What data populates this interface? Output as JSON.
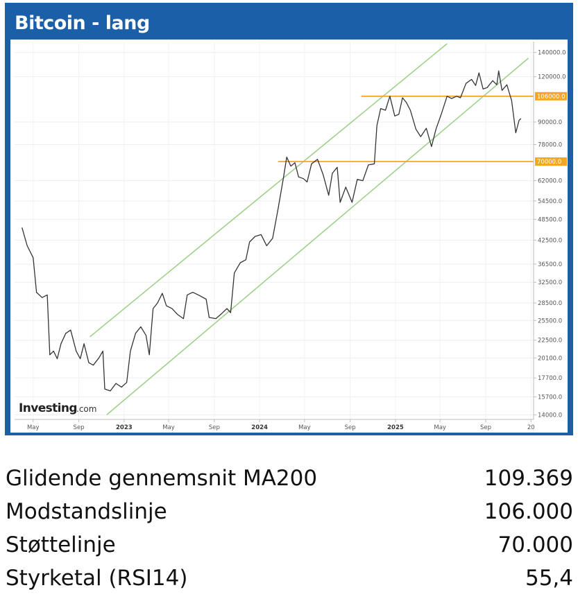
{
  "header": {
    "title": "Bitcoin - lang"
  },
  "logo": {
    "brand": "Investing",
    "suffix": ".com"
  },
  "chart_data": {
    "type": "line",
    "y_scale": "log",
    "ylim": [
      14000,
      150000
    ],
    "y_ticks": [
      "140000.0",
      "120000.0",
      "90000.0",
      "78000.0",
      "62000.0",
      "54500.0",
      "48500.0",
      "42500.0",
      "36500.0",
      "32500.0",
      "28500.0",
      "25500.0",
      "22500.0",
      "20100.0",
      "17700.0",
      "15700.0",
      "14000.0"
    ],
    "y_tick_values": [
      140000,
      120000,
      90000,
      78000,
      62000,
      54500,
      48500,
      42500,
      36500,
      32500,
      28500,
      25500,
      22500,
      20100,
      17700,
      15700,
      14000
    ],
    "x_ticks": [
      {
        "label": "May",
        "date": "2022-05-01"
      },
      {
        "label": "Sep",
        "date": "2022-09-01"
      },
      {
        "label": "2023",
        "date": "2023-01-01",
        "bold": true
      },
      {
        "label": "May",
        "date": "2023-05-01"
      },
      {
        "label": "Sep",
        "date": "2023-09-01"
      },
      {
        "label": "2024",
        "date": "2024-01-01",
        "bold": true
      },
      {
        "label": "May",
        "date": "2024-05-01"
      },
      {
        "label": "Sep",
        "date": "2024-09-01"
      },
      {
        "label": "2025",
        "date": "2025-01-01",
        "bold": true
      },
      {
        "label": "May",
        "date": "2025-05-01"
      },
      {
        "label": "Sep",
        "date": "2025-09-01"
      },
      {
        "label": "20",
        "date": "2026-01-01"
      }
    ],
    "series": [
      {
        "color": "#333333",
        "points": [
          [
            "2022-04-01",
            46000
          ],
          [
            "2022-04-15",
            41000
          ],
          [
            "2022-05-01",
            38000
          ],
          [
            "2022-05-10",
            30500
          ],
          [
            "2022-05-25",
            29500
          ],
          [
            "2022-06-08",
            30000
          ],
          [
            "2022-06-15",
            20500
          ],
          [
            "2022-06-25",
            21000
          ],
          [
            "2022-07-05",
            20000
          ],
          [
            "2022-07-15",
            22000
          ],
          [
            "2022-07-28",
            23500
          ],
          [
            "2022-08-10",
            24000
          ],
          [
            "2022-08-25",
            21000
          ],
          [
            "2022-09-05",
            20000
          ],
          [
            "2022-09-15",
            22000
          ],
          [
            "2022-09-28",
            19500
          ],
          [
            "2022-10-10",
            19200
          ],
          [
            "2022-10-25",
            20100
          ],
          [
            "2022-11-05",
            21000
          ],
          [
            "2022-11-10",
            16500
          ],
          [
            "2022-11-25",
            16300
          ],
          [
            "2022-12-10",
            17100
          ],
          [
            "2022-12-25",
            16700
          ],
          [
            "2023-01-08",
            17200
          ],
          [
            "2023-01-18",
            21000
          ],
          [
            "2023-02-01",
            23500
          ],
          [
            "2023-02-15",
            24500
          ],
          [
            "2023-03-01",
            23200
          ],
          [
            "2023-03-10",
            20500
          ],
          [
            "2023-03-20",
            27500
          ],
          [
            "2023-04-01",
            28500
          ],
          [
            "2023-04-14",
            30300
          ],
          [
            "2023-04-25",
            28000
          ],
          [
            "2023-05-10",
            27500
          ],
          [
            "2023-05-25",
            26500
          ],
          [
            "2023-06-10",
            25800
          ],
          [
            "2023-06-20",
            30000
          ],
          [
            "2023-07-05",
            30500
          ],
          [
            "2023-07-20",
            30000
          ],
          [
            "2023-08-10",
            29200
          ],
          [
            "2023-08-18",
            26000
          ],
          [
            "2023-09-05",
            25800
          ],
          [
            "2023-09-20",
            26600
          ],
          [
            "2023-10-05",
            27500
          ],
          [
            "2023-10-15",
            26800
          ],
          [
            "2023-10-25",
            34500
          ],
          [
            "2023-11-10",
            36800
          ],
          [
            "2023-11-25",
            37500
          ],
          [
            "2023-12-05",
            42000
          ],
          [
            "2023-12-20",
            43500
          ],
          [
            "2024-01-05",
            44000
          ],
          [
            "2024-01-20",
            41000
          ],
          [
            "2024-02-05",
            43000
          ],
          [
            "2024-02-20",
            52000
          ],
          [
            "2024-03-05",
            63000
          ],
          [
            "2024-03-14",
            72000
          ],
          [
            "2024-03-25",
            68000
          ],
          [
            "2024-04-05",
            69500
          ],
          [
            "2024-04-15",
            63500
          ],
          [
            "2024-04-28",
            62800
          ],
          [
            "2024-05-08",
            61500
          ],
          [
            "2024-05-20",
            69000
          ],
          [
            "2024-06-05",
            71000
          ],
          [
            "2024-06-20",
            64500
          ],
          [
            "2024-07-05",
            56500
          ],
          [
            "2024-07-15",
            65000
          ],
          [
            "2024-07-28",
            67500
          ],
          [
            "2024-08-05",
            54000
          ],
          [
            "2024-08-20",
            59500
          ],
          [
            "2024-09-06",
            54000
          ],
          [
            "2024-09-20",
            62500
          ],
          [
            "2024-10-05",
            62000
          ],
          [
            "2024-10-20",
            68500
          ],
          [
            "2024-11-05",
            69000
          ],
          [
            "2024-11-12",
            88000
          ],
          [
            "2024-11-22",
            98000
          ],
          [
            "2024-12-05",
            97000
          ],
          [
            "2024-12-17",
            106000
          ],
          [
            "2024-12-30",
            93500
          ],
          [
            "2025-01-10",
            94500
          ],
          [
            "2025-01-20",
            105000
          ],
          [
            "2025-01-30",
            102000
          ],
          [
            "2025-02-10",
            97000
          ],
          [
            "2025-02-25",
            86000
          ],
          [
            "2025-03-10",
            82000
          ],
          [
            "2025-03-25",
            86500
          ],
          [
            "2025-04-08",
            77000
          ],
          [
            "2025-04-20",
            86000
          ],
          [
            "2025-05-05",
            95000
          ],
          [
            "2025-05-20",
            106000
          ],
          [
            "2025-06-01",
            104500
          ],
          [
            "2025-06-15",
            106000
          ],
          [
            "2025-06-25",
            105000
          ],
          [
            "2025-07-10",
            115000
          ],
          [
            "2025-07-25",
            118000
          ],
          [
            "2025-08-05",
            113500
          ],
          [
            "2025-08-14",
            123000
          ],
          [
            "2025-08-25",
            111000
          ],
          [
            "2025-09-05",
            112000
          ],
          [
            "2025-09-20",
            117000
          ],
          [
            "2025-10-01",
            114000
          ],
          [
            "2025-10-06",
            124500
          ],
          [
            "2025-10-15",
            110000
          ],
          [
            "2025-10-28",
            114000
          ],
          [
            "2025-11-10",
            103000
          ],
          [
            "2025-11-21",
            84000
          ],
          [
            "2025-11-30",
            91000
          ],
          [
            "2025-12-05",
            92000
          ]
        ]
      }
    ],
    "horizontal_lines": [
      {
        "label": "106000.0",
        "value": 106000,
        "start": "2024-10-01",
        "color": "#f5a623"
      },
      {
        "label": "70000.0",
        "value": 70000,
        "start": "2024-02-20",
        "color": "#f5a623"
      }
    ],
    "trend_channel": {
      "color": "#9fd18b",
      "upper": [
        [
          "2022-10-01",
          23000
        ],
        [
          "2025-05-20",
          148000
        ]
      ],
      "lower": [
        [
          "2022-11-15",
          14000
        ],
        [
          "2025-12-25",
          135000
        ]
      ]
    },
    "grid": true
  },
  "stats": [
    {
      "label": "Glidende gennemsnit MA200",
      "value": "109.369"
    },
    {
      "label": "Modstandslinje",
      "value": "106.000"
    },
    {
      "label": "Støttelinje",
      "value": "70.000"
    },
    {
      "label": "Styrketal (RSI14)",
      "value": "55,4"
    }
  ]
}
